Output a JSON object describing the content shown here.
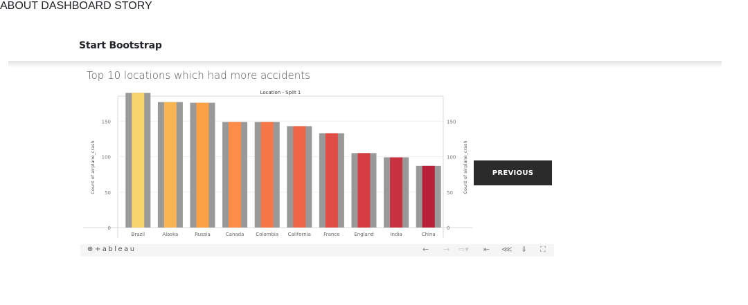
{
  "nav": {
    "brand": "Start Bootstrap",
    "links": [
      "ABOUT",
      "DASHBOARD",
      "STORY"
    ]
  },
  "viz": {
    "title": "Top 10 locations which had more accidents",
    "previous_label": "PREVIOUS",
    "logo": "⊕+ableau"
  },
  "chart_data": {
    "type": "bar",
    "title": "Location - Split 1",
    "categories": [
      "Brazil",
      "Alaska",
      "Russia",
      "Canada",
      "Colombia",
      "California",
      "France",
      "England",
      "India",
      "China"
    ],
    "series": [
      {
        "values": [
          190,
          177,
          176,
          149,
          149,
          143,
          133,
          105,
          99,
          87
        ]
      }
    ],
    "ylabel": "Count of airplane_crash",
    "ylabel_right": "Count of airplane_crash",
    "yticks": [
      0,
      50,
      100,
      150
    ],
    "ylim": [
      0,
      200
    ],
    "colors": [
      "#f6d36b",
      "#f9b551",
      "#fca044",
      "#fc8c47",
      "#f87749",
      "#ef6548",
      "#e04d45",
      "#d63d42",
      "#c8313f",
      "#b8203a"
    ],
    "shadow_color": "#999999",
    "grid": true,
    "legend": "none"
  },
  "toolbar": {
    "icons": [
      "undo-icon",
      "redo-icon",
      "revert-icon",
      "reset-icon",
      "share-icon",
      "download-icon",
      "fullscreen-icon"
    ]
  }
}
